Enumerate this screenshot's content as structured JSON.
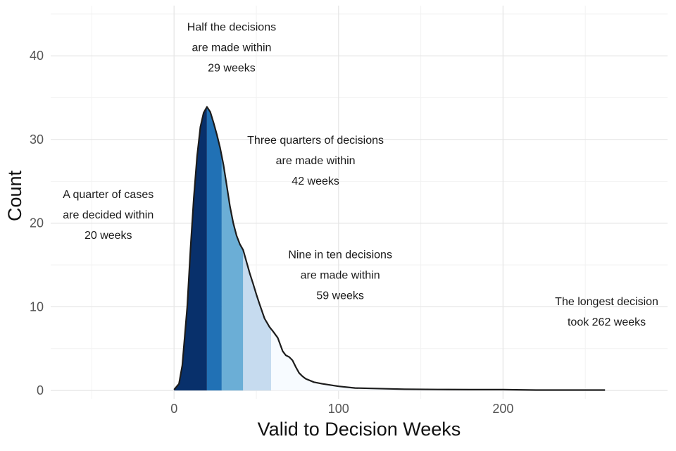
{
  "chart_data": {
    "type": "area",
    "title": "",
    "xlabel": "Valid to Decision Weeks",
    "ylabel": "Count",
    "xlim": [
      -75,
      300
    ],
    "ylim": [
      -1,
      46
    ],
    "x_ticks": [
      0,
      100,
      200
    ],
    "y_ticks": [
      0,
      10,
      20,
      30,
      40
    ],
    "x_tick_labels": [
      "0",
      "100",
      "200"
    ],
    "y_tick_labels": [
      "0",
      "10",
      "20",
      "30",
      "40"
    ],
    "grid": true,
    "legend": "none",
    "density_curve": {
      "x": [
        0,
        3,
        5,
        8,
        10,
        12,
        14,
        16,
        18,
        20,
        22,
        24,
        26,
        28,
        30,
        32,
        34,
        36,
        38,
        40,
        42,
        44,
        46,
        48,
        50,
        52,
        55,
        58,
        60,
        63,
        66,
        68,
        70,
        72,
        74,
        76,
        78,
        80,
        85,
        90,
        100,
        110,
        120,
        140,
        160,
        180,
        200,
        220,
        240,
        262
      ],
      "y": [
        0.1,
        0.8,
        3,
        10,
        17,
        23,
        28,
        31.5,
        33.2,
        33.9,
        33.3,
        32,
        30.6,
        29,
        27,
        24.5,
        22,
        20,
        18.5,
        17.5,
        16.8,
        15.4,
        14,
        12.8,
        11.5,
        10.3,
        8.6,
        7.6,
        7.1,
        6.3,
        4.7,
        4.2,
        4,
        3.6,
        2.8,
        2.1,
        1.7,
        1.4,
        1.0,
        0.8,
        0.5,
        0.3,
        0.25,
        0.15,
        0.12,
        0.1,
        0.1,
        0.05,
        0.05,
        0.05
      ]
    },
    "bands": [
      {
        "name": "25th percentile",
        "from": 0,
        "to": 20,
        "color": "#08306b"
      },
      {
        "name": "50th percentile",
        "from": 20,
        "to": 29,
        "color": "#2171b5"
      },
      {
        "name": "75th percentile",
        "from": 29,
        "to": 42,
        "color": "#6baed6"
      },
      {
        "name": "90th percentile",
        "from": 42,
        "to": 59,
        "color": "#c6dbef"
      },
      {
        "name": "maximum",
        "from": 59,
        "to": 262,
        "color": "#f7fbff"
      }
    ],
    "annotations": [
      {
        "id": "quarter",
        "lines": [
          "A quarter of cases",
          "are decided within",
          "20 weeks"
        ],
        "x": -40,
        "y": 23
      },
      {
        "id": "half",
        "lines": [
          "Half the decisions",
          "are made within",
          "29 weeks"
        ],
        "x": 35,
        "y": 43
      },
      {
        "id": "three-quarters",
        "lines": [
          "Three quarters of decisions",
          "are made within",
          "42 weeks"
        ],
        "x": 86,
        "y": 29.5
      },
      {
        "id": "nine-in-ten",
        "lines": [
          "Nine in ten decisions",
          "are made within",
          "59 weeks"
        ],
        "x": 101,
        "y": 15.8
      },
      {
        "id": "longest",
        "lines": [
          "The longest decision",
          "took 262 weeks"
        ],
        "x": 263,
        "y": 10.2
      }
    ]
  }
}
